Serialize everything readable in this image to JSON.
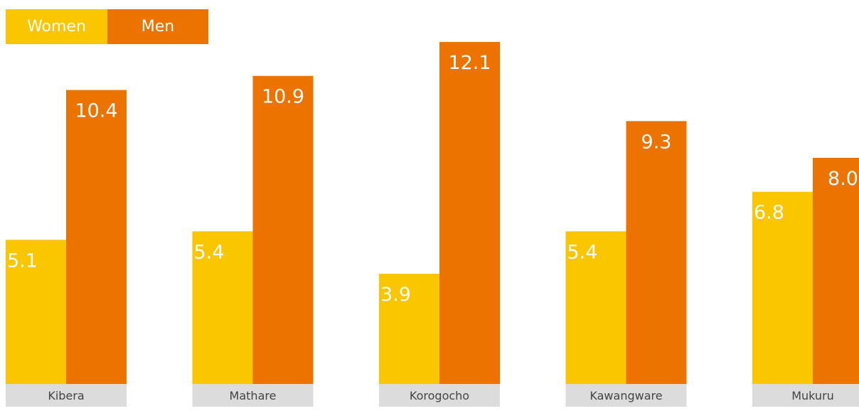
{
  "legend": {
    "women": "Women",
    "men": "Men"
  },
  "colors": {
    "women": "#FAC600",
    "men": "#EC7300",
    "category_band": "#DCDCDC",
    "label_text": "#FFFFFF",
    "category_text": "#444444"
  },
  "chart_data": {
    "type": "bar",
    "categories": [
      "Kibera",
      "Mathare",
      "Korogocho",
      "Kawangware",
      "Mukuru"
    ],
    "series": [
      {
        "name": "Women",
        "values": [
          5.1,
          5.4,
          3.9,
          5.4,
          6.8
        ]
      },
      {
        "name": "Men",
        "values": [
          10.4,
          10.9,
          12.1,
          9.3,
          8.0
        ]
      }
    ],
    "value_labels": {
      "Women": [
        "5.1",
        "5.4",
        "3.9",
        "5.4",
        "6.8"
      ],
      "Men": [
        "10.4",
        "10.9",
        "12.1",
        "9.3",
        "8.0"
      ]
    },
    "legend_position": "top-left",
    "grid": false
  }
}
